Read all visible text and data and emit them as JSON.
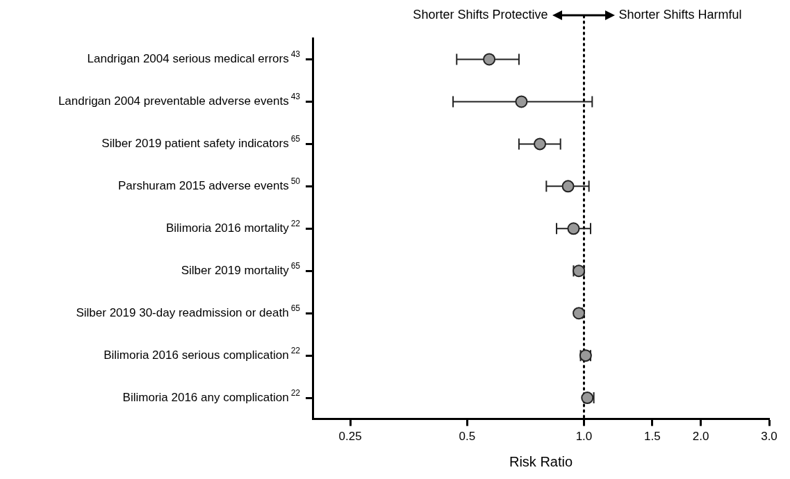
{
  "chart_data": {
    "type": "scatter",
    "xlabel": "Risk Ratio",
    "categories": [
      "Landrigan 2004 serious medical errors$^{43}$",
      "Landrigan 2004 preventable adverse events$^{43}$",
      "Silber 2019 patient safety indicators$^{65}$",
      "Parshuram 2015 adverse events$^{50}$",
      "Bilimoria 2016 mortality$^{22}$",
      "Silber 2019 mortality$^{65}$",
      "Silber 2019 30-day readmission or death$^{65}$",
      "Bilimoria 2016 serious complication$^{22}$",
      "Bilimoria 2016 any complication$^{22}$"
    ],
    "values": [
      0.57,
      0.69,
      0.77,
      0.91,
      0.94,
      0.97,
      0.97,
      1.01,
      1.02
    ],
    "errors": [
      [
        0.47,
        0.68
      ],
      [
        0.46,
        1.05
      ],
      [
        0.68,
        0.87
      ],
      [
        0.8,
        1.03
      ],
      [
        0.85,
        1.04
      ],
      [
        0.94,
        1.0
      ],
      [
        0.96,
        0.99
      ],
      [
        0.98,
        1.04
      ],
      [
        1.0,
        1.06
      ]
    ],
    "color": "#999999",
    "marker": "circle",
    "log": "x",
    "orientation": "horizontal",
    "xlim": [
      0.2,
      3.0
    ],
    "xticks": [
      0.25,
      0.5,
      {
        "value": 1,
        "label": "1.0"
      },
      1.5,
      {
        "value": 2,
        "label": "2.0"
      },
      {
        "value": 3,
        "label": "3.0"
      }
    ],
    "ref_lines": [
      {
        "axis": "x",
        "value": 1,
        "line_style": "dotted",
        "color": "#000000"
      }
    ],
    "annotations": [
      "Shorter Shifts Protective",
      "Shorter Shifts Harmful"
    ],
    "grid": false,
    "legend": false
  }
}
